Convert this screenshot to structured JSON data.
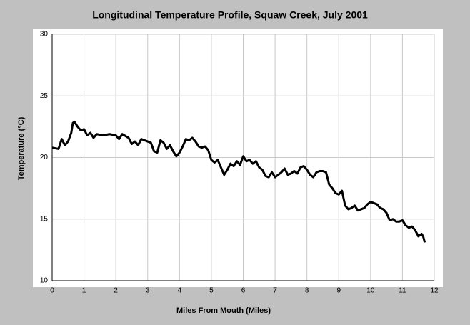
{
  "chart_data": {
    "type": "line",
    "title": "Longitudinal Temperature Profile, Squaw Creek, July 2001",
    "xlabel": "Miles From Mouth (Miles)",
    "ylabel": "Temperature (°C)",
    "x": [
      0,
      0.2,
      0.3,
      0.4,
      0.5,
      0.6,
      0.65,
      0.7,
      0.8,
      0.9,
      1.0,
      1.1,
      1.2,
      1.3,
      1.4,
      1.6,
      1.8,
      2.0,
      2.1,
      2.2,
      2.4,
      2.5,
      2.6,
      2.7,
      2.8,
      3.0,
      3.1,
      3.2,
      3.3,
      3.4,
      3.5,
      3.6,
      3.7,
      3.8,
      3.9,
      4.0,
      4.1,
      4.2,
      4.3,
      4.4,
      4.5,
      4.6,
      4.7,
      4.8,
      4.9,
      5.0,
      5.1,
      5.2,
      5.3,
      5.4,
      5.5,
      5.6,
      5.7,
      5.8,
      5.9,
      6.0,
      6.1,
      6.2,
      6.3,
      6.4,
      6.5,
      6.6,
      6.7,
      6.8,
      6.9,
      7.0,
      7.1,
      7.2,
      7.3,
      7.4,
      7.5,
      7.6,
      7.7,
      7.8,
      7.9,
      8.0,
      8.1,
      8.2,
      8.3,
      8.4,
      8.5,
      8.6,
      8.7,
      8.8,
      8.9,
      9.0,
      9.1,
      9.2,
      9.3,
      9.4,
      9.5,
      9.6,
      9.7,
      9.8,
      9.9,
      10.0,
      10.1,
      10.2,
      10.3,
      10.4,
      10.5,
      10.6,
      10.7,
      10.8,
      10.9,
      11.0,
      11.1,
      11.2,
      11.3,
      11.4,
      11.5,
      11.6,
      11.65,
      11.7
    ],
    "series": [
      {
        "name": "Temperature",
        "color": "#000000",
        "values": [
          20.8,
          20.7,
          21.5,
          21.0,
          21.3,
          22.0,
          22.8,
          22.9,
          22.5,
          22.2,
          22.3,
          21.8,
          22.0,
          21.6,
          21.9,
          21.8,
          21.9,
          21.8,
          21.5,
          21.9,
          21.6,
          21.1,
          21.3,
          21.0,
          21.5,
          21.3,
          21.2,
          20.5,
          20.4,
          21.4,
          21.2,
          20.7,
          21.0,
          20.5,
          20.1,
          20.4,
          20.9,
          21.5,
          21.4,
          21.6,
          21.3,
          20.9,
          20.8,
          20.9,
          20.6,
          19.8,
          19.6,
          19.8,
          19.2,
          18.6,
          19.0,
          19.5,
          19.3,
          19.7,
          19.4,
          20.1,
          19.7,
          19.8,
          19.5,
          19.7,
          19.2,
          19.0,
          18.5,
          18.4,
          18.8,
          18.4,
          18.6,
          18.8,
          19.1,
          18.6,
          18.7,
          18.9,
          18.7,
          19.2,
          19.3,
          19.0,
          18.6,
          18.4,
          18.8,
          18.9,
          18.9,
          18.8,
          17.8,
          17.5,
          17.1,
          17.0,
          17.3,
          16.1,
          15.8,
          15.9,
          16.1,
          15.7,
          15.8,
          15.9,
          16.2,
          16.4,
          16.3,
          16.2,
          15.9,
          15.8,
          15.5,
          14.9,
          15.0,
          14.8,
          14.8,
          14.9,
          14.5,
          14.3,
          14.4,
          14.1,
          13.6,
          13.8,
          13.6,
          13.1
        ]
      }
    ],
    "xlim": [
      0,
      12
    ],
    "xticks": [
      0,
      1,
      2,
      3,
      4,
      5,
      6,
      7,
      8,
      9,
      10,
      11,
      12
    ],
    "ylim": [
      10,
      30
    ],
    "yticks": [
      10,
      15,
      20,
      25,
      30
    ],
    "grid": true
  }
}
